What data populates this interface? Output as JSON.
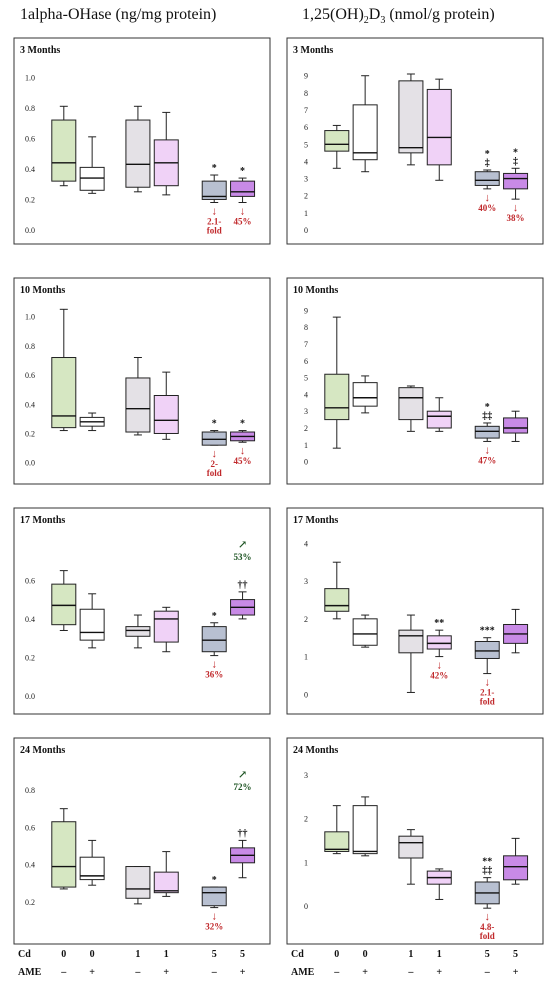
{
  "column_titles": {
    "left": "1alpha-OHase (ng/mg protein)",
    "right_prefix": "1,25(OH)",
    "right_sub1": "2",
    "right_mid": "D",
    "right_sub2": "3",
    "right_suffix": " (nmol/g protein)"
  },
  "x_axis": {
    "cd_label": "Cd",
    "ame_label": "AME",
    "cd_values": [
      "0",
      "0",
      "1",
      "1",
      "5",
      "5"
    ],
    "ame_values": [
      "–",
      "+",
      "–",
      "+",
      "–",
      "+"
    ]
  },
  "colors": {
    "groups": [
      "#d6e7c2",
      "#ffffff",
      "#e4e1e6",
      "#f0d2f7",
      "#b8c0d1",
      "#c88ae6"
    ],
    "annotation": "#c0282b",
    "increase": "#1a5220"
  },
  "chart_data": [
    {
      "type": "box",
      "panel": "left",
      "title": "3 Months",
      "ylim": [
        0,
        1.1
      ],
      "yticks": [
        "0.0",
        "0.2",
        "0.4",
        "0.6",
        "0.8",
        "1.0"
      ],
      "boxes": [
        {
          "group": "Cd 0 AME -",
          "min": 0.29,
          "q1": 0.32,
          "median": 0.44,
          "q3": 0.72,
          "max": 0.81
        },
        {
          "group": "Cd 0 AME +",
          "min": 0.24,
          "q1": 0.26,
          "median": 0.34,
          "q3": 0.41,
          "max": 0.61
        },
        {
          "group": "Cd 1 AME -",
          "min": 0.25,
          "q1": 0.28,
          "median": 0.43,
          "q3": 0.72,
          "max": 0.81
        },
        {
          "group": "Cd 1 AME +",
          "min": 0.23,
          "q1": 0.29,
          "median": 0.44,
          "q3": 0.59,
          "max": 0.77
        },
        {
          "group": "Cd 5 AME -",
          "min": 0.18,
          "q1": 0.2,
          "median": 0.22,
          "q3": 0.32,
          "max": 0.36
        },
        {
          "group": "Cd 5 AME +",
          "min": 0.18,
          "q1": 0.22,
          "median": 0.25,
          "q3": 0.32,
          "max": 0.34
        }
      ],
      "marks": [
        {
          "group": 5,
          "sig": "*",
          "arrow": "↓",
          "note": [
            "2.1-",
            "fold"
          ],
          "dir": "down"
        },
        {
          "group": 6,
          "sig": "*",
          "arrow": "↓",
          "note": [
            "45%"
          ],
          "dir": "down"
        }
      ]
    },
    {
      "type": "box",
      "panel": "right",
      "title": "3 Months",
      "ylim": [
        0,
        9.8
      ],
      "yticks": [
        "0",
        "1",
        "2",
        "3",
        "4",
        "5",
        "6",
        "7",
        "8",
        "9"
      ],
      "boxes": [
        {
          "group": "Cd 0 AME -",
          "min": 3.6,
          "q1": 4.6,
          "median": 5.0,
          "q3": 5.8,
          "max": 6.1
        },
        {
          "group": "Cd 0 AME +",
          "min": 3.4,
          "q1": 4.1,
          "median": 4.5,
          "q3": 7.3,
          "max": 9.0
        },
        {
          "group": "Cd 1 AME -",
          "min": 3.8,
          "q1": 4.5,
          "median": 4.8,
          "q3": 8.7,
          "max": 9.1
        },
        {
          "group": "Cd 1 AME +",
          "min": 2.9,
          "q1": 3.8,
          "median": 5.4,
          "q3": 8.2,
          "max": 8.8
        },
        {
          "group": "Cd 5 AME -",
          "min": 2.4,
          "q1": 2.6,
          "median": 2.9,
          "q3": 3.4,
          "max": 3.5
        },
        {
          "group": "Cd 5 AME +",
          "min": 1.8,
          "q1": 2.4,
          "median": 3.0,
          "q3": 3.3,
          "max": 3.6
        }
      ],
      "marks": [
        {
          "group": 5,
          "sig": "*",
          "sig2": "‡",
          "arrow": "↓",
          "note": [
            "40%"
          ],
          "dir": "down"
        },
        {
          "group": 6,
          "sig": "*",
          "sig2": "‡",
          "arrow": "↓",
          "note": [
            "38%"
          ],
          "dir": "down"
        }
      ]
    },
    {
      "type": "box",
      "panel": "left",
      "title": "10 Months",
      "ylim": [
        -0.05,
        1.1
      ],
      "yticks": [
        "0.0",
        "0.2",
        "0.4",
        "0.6",
        "0.8",
        "1.0"
      ],
      "boxes": [
        {
          "group": "Cd 0 AME -",
          "min": 0.22,
          "q1": 0.24,
          "median": 0.32,
          "q3": 0.72,
          "max": 1.05
        },
        {
          "group": "Cd 0 AME +",
          "min": 0.22,
          "q1": 0.25,
          "median": 0.28,
          "q3": 0.31,
          "max": 0.34
        },
        {
          "group": "Cd 1 AME -",
          "min": 0.19,
          "q1": 0.21,
          "median": 0.37,
          "q3": 0.58,
          "max": 0.72
        },
        {
          "group": "Cd 1 AME +",
          "min": 0.16,
          "q1": 0.2,
          "median": 0.29,
          "q3": 0.46,
          "max": 0.62
        },
        {
          "group": "Cd 5 AME -",
          "min": 0.12,
          "q1": 0.12,
          "median": 0.16,
          "q3": 0.21,
          "max": 0.22
        },
        {
          "group": "Cd 5 AME +",
          "min": 0.14,
          "q1": 0.15,
          "median": 0.18,
          "q3": 0.21,
          "max": 0.22
        }
      ],
      "marks": [
        {
          "group": 5,
          "sig": "*",
          "arrow": "↓",
          "note": [
            "2-",
            "fold"
          ],
          "dir": "down"
        },
        {
          "group": 6,
          "sig": "*",
          "arrow": "↓",
          "note": [
            "45%"
          ],
          "dir": "down"
        }
      ]
    },
    {
      "type": "box",
      "panel": "right",
      "title": "10 Months",
      "ylim": [
        -0.5,
        9.5
      ],
      "yticks": [
        "0",
        "1",
        "2",
        "3",
        "4",
        "5",
        "6",
        "7",
        "8",
        "9"
      ],
      "boxes": [
        {
          "group": "Cd 0 AME -",
          "min": 0.8,
          "q1": 2.5,
          "median": 3.2,
          "q3": 5.2,
          "max": 8.6
        },
        {
          "group": "Cd 0 AME +",
          "min": 2.9,
          "q1": 3.3,
          "median": 3.8,
          "q3": 4.7,
          "max": 5.1
        },
        {
          "group": "Cd 1 AME -",
          "min": 1.8,
          "q1": 2.5,
          "median": 3.8,
          "q3": 4.4,
          "max": 4.5
        },
        {
          "group": "Cd 1 AME +",
          "min": 1.8,
          "q1": 2.0,
          "median": 2.7,
          "q3": 3.0,
          "max": 3.8
        },
        {
          "group": "Cd 5 AME -",
          "min": 1.2,
          "q1": 1.4,
          "median": 1.8,
          "q3": 2.1,
          "max": 2.3
        },
        {
          "group": "Cd 5 AME +",
          "min": 1.2,
          "q1": 1.7,
          "median": 2.0,
          "q3": 2.6,
          "max": 3.0
        }
      ],
      "marks": [
        {
          "group": 5,
          "sig": "*",
          "sig2": "‡‡",
          "arrow": "↓",
          "note": [
            "47%"
          ],
          "dir": "down"
        }
      ]
    },
    {
      "type": "box",
      "panel": "left",
      "title": "17 Months",
      "ylim": [
        -0.02,
        0.85
      ],
      "yticks": [
        "0.0",
        "0.2",
        "0.4",
        "0.6"
      ],
      "boxes": [
        {
          "group": "Cd 0 AME -",
          "min": 0.34,
          "q1": 0.37,
          "median": 0.47,
          "q3": 0.58,
          "max": 0.65
        },
        {
          "group": "Cd 0 AME +",
          "min": 0.25,
          "q1": 0.29,
          "median": 0.33,
          "q3": 0.45,
          "max": 0.53
        },
        {
          "group": "Cd 1 AME -",
          "min": 0.25,
          "q1": 0.31,
          "median": 0.34,
          "q3": 0.36,
          "max": 0.42
        },
        {
          "group": "Cd 1 AME +",
          "min": 0.23,
          "q1": 0.28,
          "median": 0.4,
          "q3": 0.44,
          "max": 0.46
        },
        {
          "group": "Cd 5 AME -",
          "min": 0.21,
          "q1": 0.23,
          "median": 0.29,
          "q3": 0.36,
          "max": 0.38
        },
        {
          "group": "Cd 5 AME +",
          "min": 0.4,
          "q1": 0.42,
          "median": 0.46,
          "q3": 0.5,
          "max": 0.54
        }
      ],
      "marks": [
        {
          "group": 5,
          "sig": "*",
          "arrow": "↓",
          "note": [
            "36%"
          ],
          "dir": "down"
        },
        {
          "group": 6,
          "sig": "††",
          "arrow": "↗",
          "note": [
            "53%"
          ],
          "dir": "up"
        }
      ]
    },
    {
      "type": "box",
      "panel": "right",
      "title": "17 Months",
      "ylim": [
        -0.15,
        4.3
      ],
      "yticks": [
        "0",
        "1",
        "2",
        "3",
        "4"
      ],
      "boxes": [
        {
          "group": "Cd 0 AME -",
          "min": 2.0,
          "q1": 2.2,
          "median": 2.35,
          "q3": 2.8,
          "max": 3.5
        },
        {
          "group": "Cd 0 AME +",
          "min": 1.25,
          "q1": 1.3,
          "median": 1.6,
          "q3": 2.0,
          "max": 2.1
        },
        {
          "group": "Cd 1 AME -",
          "min": 0.05,
          "q1": 1.1,
          "median": 1.55,
          "q3": 1.7,
          "max": 2.1
        },
        {
          "group": "Cd 1 AME +",
          "min": 1.0,
          "q1": 1.2,
          "median": 1.35,
          "q3": 1.55,
          "max": 1.7
        },
        {
          "group": "Cd 5 AME -",
          "min": 0.55,
          "q1": 0.95,
          "median": 1.15,
          "q3": 1.4,
          "max": 1.5
        },
        {
          "group": "Cd 5 AME +",
          "min": 1.1,
          "q1": 1.35,
          "median": 1.6,
          "q3": 1.85,
          "max": 2.25
        }
      ],
      "marks": [
        {
          "group": 4,
          "sig": "**",
          "arrow": "↓",
          "note": [
            "42%"
          ],
          "dir": "down"
        },
        {
          "group": 5,
          "sig": "***",
          "arrow": "↓",
          "note": [
            "2.1-",
            "fold"
          ],
          "dir": "down"
        }
      ]
    },
    {
      "type": "box",
      "panel": "left",
      "title": "24 Months",
      "ylim": [
        0.05,
        0.95
      ],
      "yticks": [
        "0.2",
        "0.4",
        "0.6",
        "0.8"
      ],
      "boxes": [
        {
          "group": "Cd 0 AME -",
          "min": 0.27,
          "q1": 0.28,
          "median": 0.39,
          "q3": 0.63,
          "max": 0.7
        },
        {
          "group": "Cd 0 AME +",
          "min": 0.29,
          "q1": 0.32,
          "median": 0.34,
          "q3": 0.44,
          "max": 0.53
        },
        {
          "group": "Cd 1 AME -",
          "min": 0.19,
          "q1": 0.22,
          "median": 0.27,
          "q3": 0.39,
          "max": 0.39
        },
        {
          "group": "Cd 1 AME +",
          "min": 0.23,
          "q1": 0.25,
          "median": 0.26,
          "q3": 0.36,
          "max": 0.47
        },
        {
          "group": "Cd 5 AME -",
          "min": 0.17,
          "q1": 0.18,
          "median": 0.25,
          "q3": 0.28,
          "max": 0.28
        },
        {
          "group": "Cd 5 AME +",
          "min": 0.33,
          "q1": 0.41,
          "median": 0.45,
          "q3": 0.49,
          "max": 0.53
        }
      ],
      "marks": [
        {
          "group": 5,
          "sig": "*",
          "arrow": "↓",
          "note": [
            "32%"
          ],
          "dir": "down"
        },
        {
          "group": 6,
          "sig": "††",
          "arrow": "↗",
          "note": [
            "72%"
          ],
          "dir": "up"
        }
      ]
    },
    {
      "type": "box",
      "panel": "right",
      "title": "24 Months",
      "ylim": [
        -0.55,
        3.3
      ],
      "yticks": [
        "0",
        "1",
        "2",
        "3"
      ],
      "boxes": [
        {
          "group": "Cd 0 AME -",
          "min": 1.2,
          "q1": 1.25,
          "median": 1.3,
          "q3": 1.7,
          "max": 2.3
        },
        {
          "group": "Cd 0 AME +",
          "min": 1.15,
          "q1": 1.2,
          "median": 1.25,
          "q3": 2.3,
          "max": 2.5
        },
        {
          "group": "Cd 1 AME -",
          "min": 0.5,
          "q1": 1.1,
          "median": 1.45,
          "q3": 1.6,
          "max": 1.75
        },
        {
          "group": "Cd 1 AME +",
          "min": 0.15,
          "q1": 0.5,
          "median": 0.65,
          "q3": 0.8,
          "max": 0.85
        },
        {
          "group": "Cd 5 AME -",
          "min": -0.05,
          "q1": 0.05,
          "median": 0.3,
          "q3": 0.55,
          "max": 0.65
        },
        {
          "group": "Cd 5 AME +",
          "min": 0.5,
          "q1": 0.6,
          "median": 0.9,
          "q3": 1.15,
          "max": 1.55
        }
      ],
      "marks": [
        {
          "group": 5,
          "sig": "**",
          "sig2": "‡‡",
          "arrow": "↓",
          "note": [
            "4.8-",
            "fold"
          ],
          "dir": "down"
        }
      ]
    }
  ]
}
